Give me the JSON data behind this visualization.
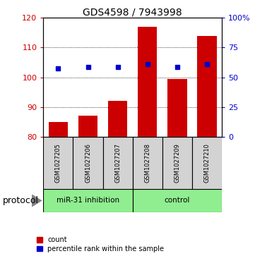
{
  "title": "GDS4598 / 7943998",
  "samples": [
    "GSM1027205",
    "GSM1027206",
    "GSM1027207",
    "GSM1027208",
    "GSM1027209",
    "GSM1027210"
  ],
  "counts": [
    85,
    87,
    92,
    117,
    99.5,
    114
  ],
  "percentile_ranks": [
    103,
    103.5,
    103.5,
    104.5,
    103.5,
    104.5
  ],
  "ylim_left": [
    80,
    120
  ],
  "yticks_left": [
    80,
    90,
    100,
    110,
    120
  ],
  "ytick_labels_right": [
    "0",
    "25",
    "50",
    "75",
    "100%"
  ],
  "bar_color": "#cc0000",
  "dot_color": "#0000cc",
  "bar_bottom": 80,
  "group1_label": "miR-31 inhibition",
  "group2_label": "control",
  "group_color": "#90ee90",
  "legend_count_label": "count",
  "legend_pct_label": "percentile rank within the sample",
  "protocol_label": "protocol",
  "sample_box_color": "#d3d3d3",
  "gridline_ticks": [
    90,
    100,
    110
  ],
  "title_fontsize": 10,
  "tick_fontsize": 8,
  "label_fontsize": 7.5,
  "protocol_fontsize": 9,
  "legend_fontsize": 7
}
